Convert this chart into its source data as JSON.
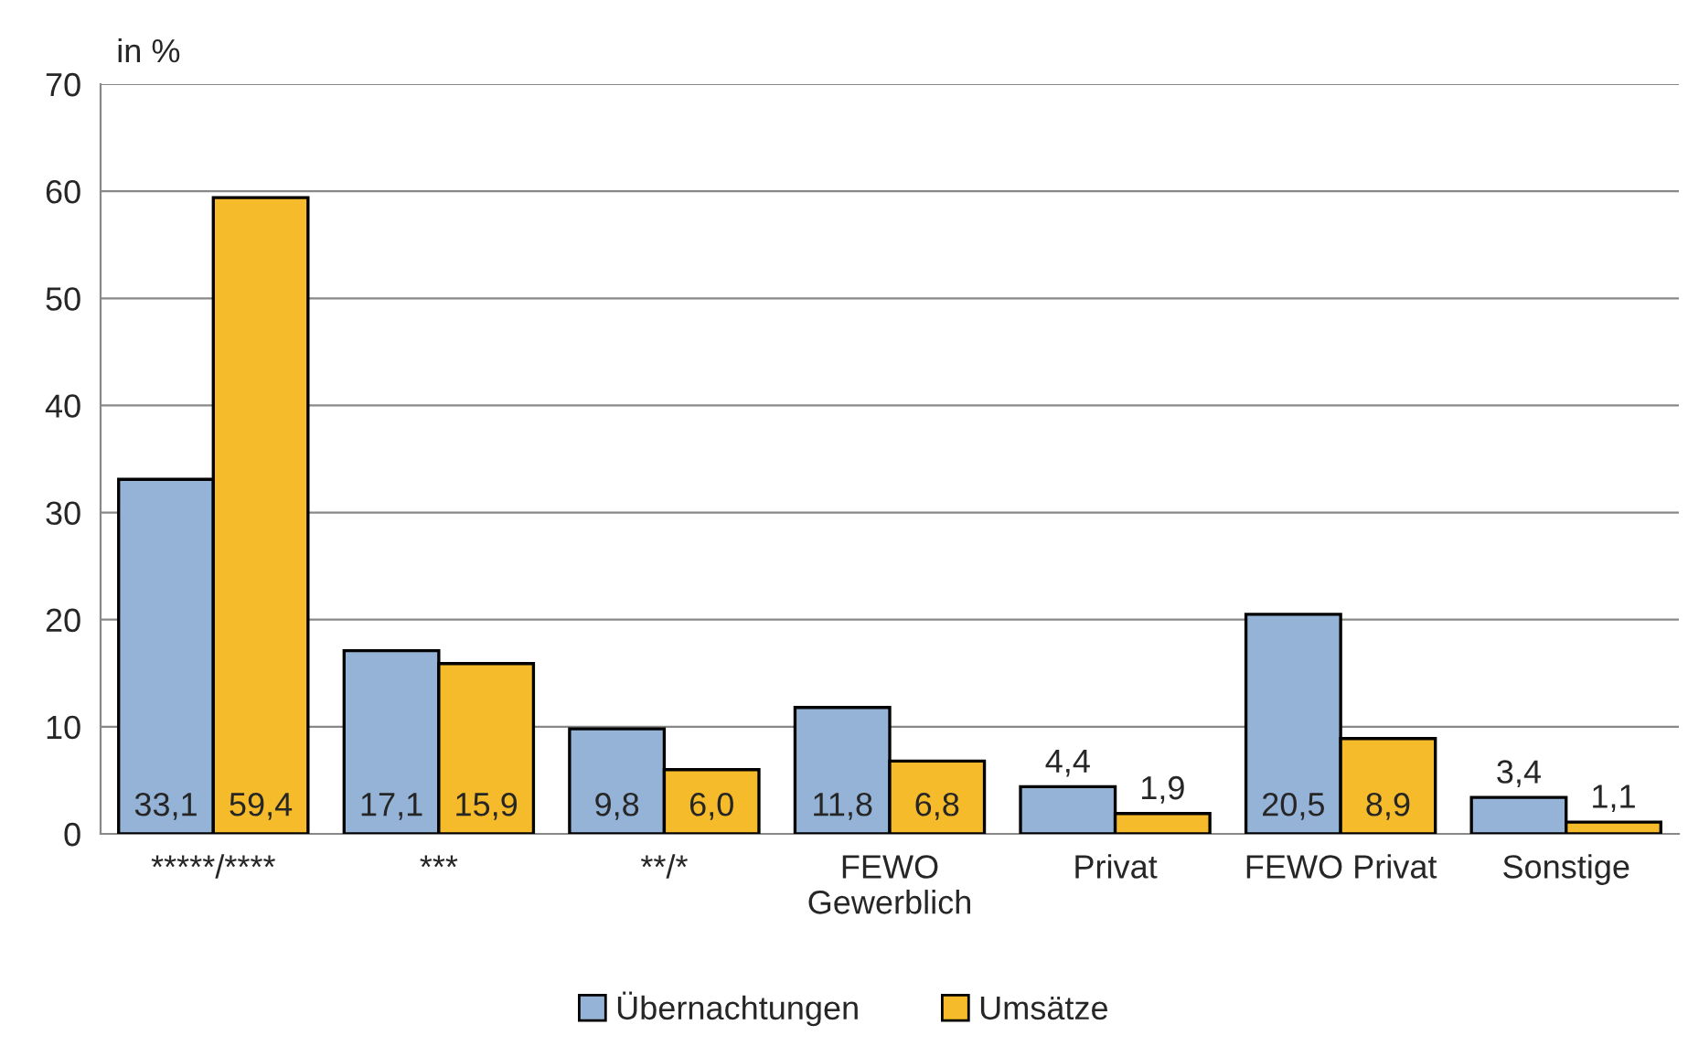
{
  "chart_data": {
    "type": "bar",
    "ylabel": "in %",
    "categories": [
      "*****/****",
      "***",
      "**/*",
      "FEWO\nGewerblich",
      "Privat",
      "FEWO Privat",
      "Sonstige"
    ],
    "series": [
      {
        "name": "Übernachtungen",
        "color": "#95b3d7",
        "values": [
          33.1,
          17.1,
          9.8,
          11.8,
          4.4,
          20.5,
          3.4
        ],
        "value_labels": [
          "33,1",
          "17,1",
          "9,8",
          "11,8",
          "4,4",
          "20,5",
          "3,4"
        ]
      },
      {
        "name": "Umsätze",
        "color": "#f6bb2a",
        "values": [
          59.4,
          15.9,
          6.0,
          6.8,
          1.9,
          8.9,
          1.1
        ],
        "value_labels": [
          "59,4",
          "15,9",
          "6,0",
          "6,8",
          "1,9",
          "8,9",
          "1,1"
        ]
      }
    ],
    "ylim": [
      0,
      70
    ],
    "yticks": [
      0,
      10,
      20,
      30,
      40,
      50,
      60,
      70
    ],
    "grid": "y",
    "legend": "bottom"
  }
}
